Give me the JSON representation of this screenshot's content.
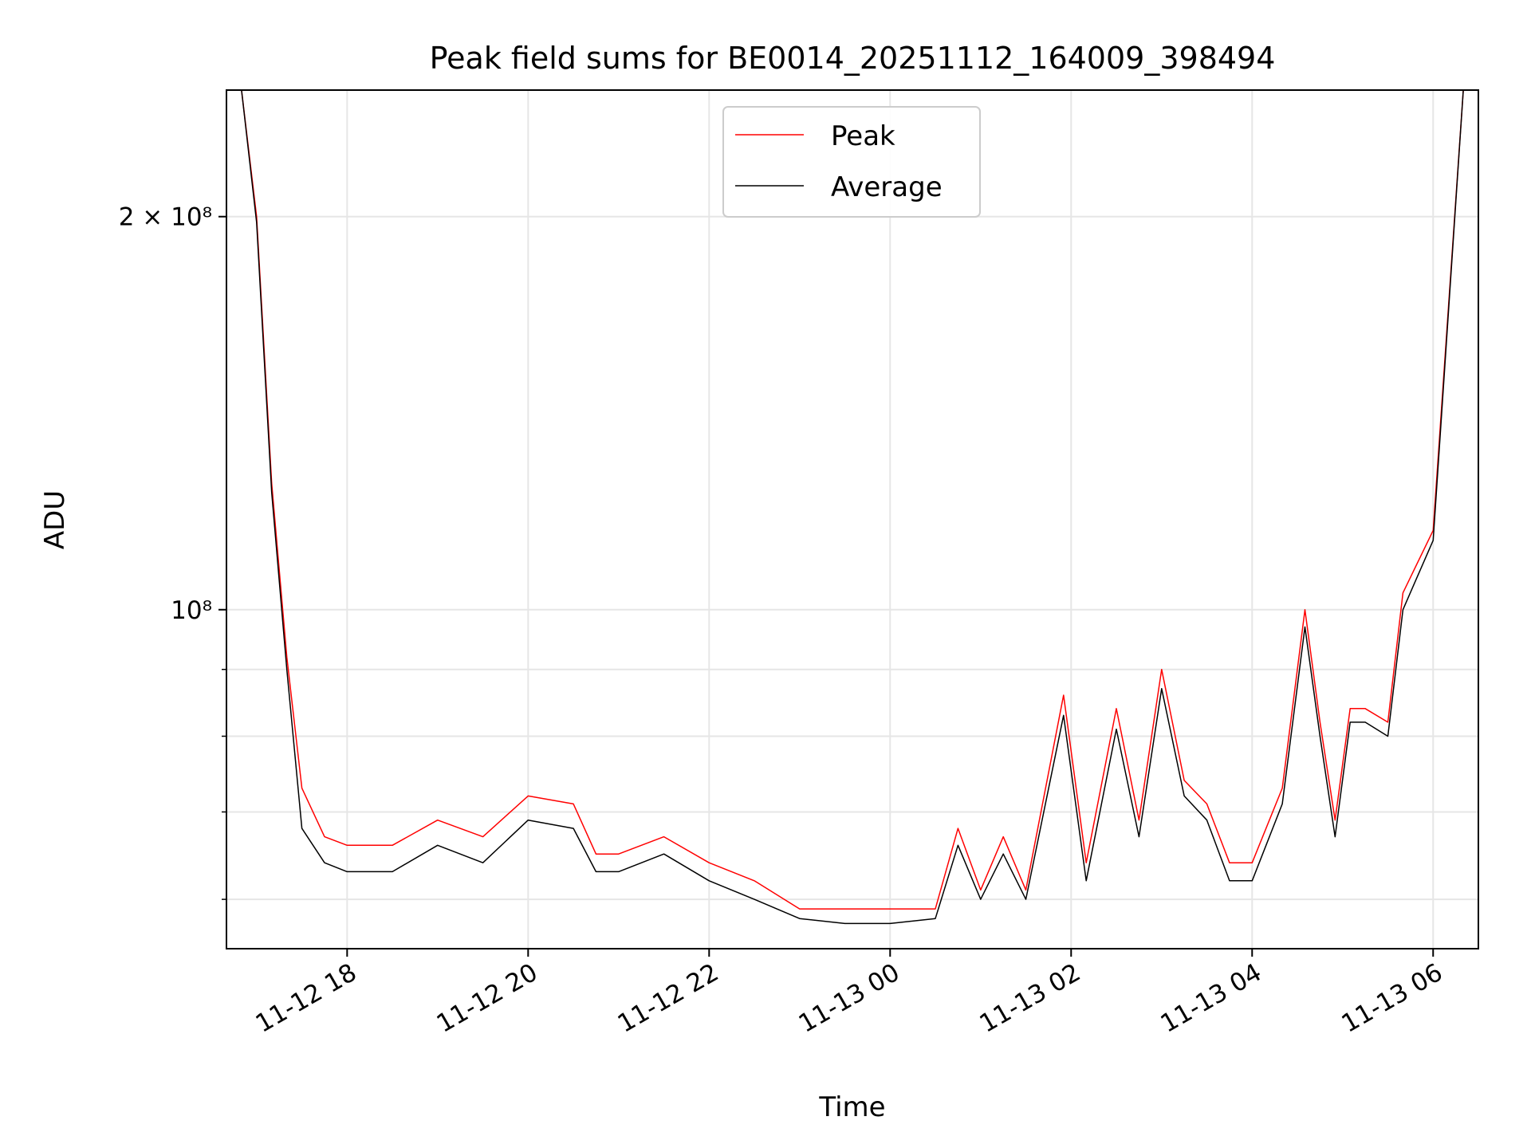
{
  "chart_data": {
    "type": "line",
    "title": "Peak field sums for BE0014_20251112_164009_398494",
    "xlabel": "Time",
    "ylabel": "ADU",
    "y_scale": "log",
    "ylim": [
      55000000,
      250000000
    ],
    "xlim": [
      "2025-11-12T16:40:00",
      "2025-11-13T06:30:00"
    ],
    "grid": true,
    "legend_location": "upper center",
    "x_ticks": [
      {
        "value": "2025-11-12T18:00:00",
        "label": "11-12 18"
      },
      {
        "value": "2025-11-12T20:00:00",
        "label": "11-12 20"
      },
      {
        "value": "2025-11-12T22:00:00",
        "label": "11-12 22"
      },
      {
        "value": "2025-11-13T00:00:00",
        "label": "11-13 00"
      },
      {
        "value": "2025-11-13T02:00:00",
        "label": "11-13 02"
      },
      {
        "value": "2025-11-13T04:00:00",
        "label": "11-13 04"
      },
      {
        "value": "2025-11-13T06:00:00",
        "label": "11-13 06"
      }
    ],
    "y_ticks": [
      {
        "value": 100000000,
        "label": "10⁸"
      },
      {
        "value": 200000000,
        "label": "2 × 10⁸"
      }
    ],
    "y_minor_ticks": [
      60000000,
      70000000,
      80000000,
      90000000
    ],
    "series": [
      {
        "name": "Peak",
        "color": "#ff0000",
        "width": 1.0,
        "x": [
          "2025-11-12T16:40:00",
          "2025-11-12T16:50:00",
          "2025-11-12T17:00:00",
          "2025-11-12T17:10:00",
          "2025-11-12T17:20:00",
          "2025-11-12T17:30:00",
          "2025-11-12T17:45:00",
          "2025-11-12T18:00:00",
          "2025-11-12T18:30:00",
          "2025-11-12T19:00:00",
          "2025-11-12T19:30:00",
          "2025-11-12T20:00:00",
          "2025-11-12T20:30:00",
          "2025-11-12T20:45:00",
          "2025-11-12T21:00:00",
          "2025-11-12T21:30:00",
          "2025-11-12T22:00:00",
          "2025-11-12T22:30:00",
          "2025-11-12T23:00:00",
          "2025-11-12T23:30:00",
          "2025-11-13T00:00:00",
          "2025-11-13T00:30:00",
          "2025-11-13T00:45:00",
          "2025-11-13T01:00:00",
          "2025-11-13T01:15:00",
          "2025-11-13T01:30:00",
          "2025-11-13T01:55:00",
          "2025-11-13T02:10:00",
          "2025-11-13T02:30:00",
          "2025-11-13T02:45:00",
          "2025-11-13T03:00:00",
          "2025-11-13T03:15:00",
          "2025-11-13T03:30:00",
          "2025-11-13T03:45:00",
          "2025-11-13T04:00:00",
          "2025-11-13T04:20:00",
          "2025-11-13T04:35:00",
          "2025-11-13T04:45:00",
          "2025-11-13T04:55:00",
          "2025-11-13T05:05:00",
          "2025-11-13T05:15:00",
          "2025-11-13T05:30:00",
          "2025-11-13T05:40:00",
          "2025-11-13T06:00:00",
          "2025-11-13T06:20:00"
        ],
        "values": [
          250000000,
          250000000,
          200000000,
          125000000,
          92000000,
          73000000,
          67000000,
          66000000,
          66000000,
          69000000,
          67000000,
          72000000,
          71000000,
          65000000,
          65000000,
          67000000,
          64000000,
          62000000,
          59000000,
          59000000,
          59000000,
          59000000,
          68000000,
          61000000,
          67000000,
          61000000,
          86000000,
          64000000,
          84000000,
          69000000,
          90000000,
          74000000,
          71000000,
          64000000,
          64000000,
          73000000,
          100000000,
          82000000,
          69000000,
          84000000,
          84000000,
          82000000,
          103000000,
          115000000,
          250000000
        ]
      },
      {
        "name": "Average",
        "color": "#000000",
        "width": 1.0,
        "x": [
          "2025-11-12T16:40:00",
          "2025-11-12T16:50:00",
          "2025-11-12T17:00:00",
          "2025-11-12T17:10:00",
          "2025-11-12T17:20:00",
          "2025-11-12T17:30:00",
          "2025-11-12T17:45:00",
          "2025-11-12T18:00:00",
          "2025-11-12T18:30:00",
          "2025-11-12T19:00:00",
          "2025-11-12T19:30:00",
          "2025-11-12T20:00:00",
          "2025-11-12T20:30:00",
          "2025-11-12T20:45:00",
          "2025-11-12T21:00:00",
          "2025-11-12T21:30:00",
          "2025-11-12T22:00:00",
          "2025-11-12T22:30:00",
          "2025-11-12T23:00:00",
          "2025-11-12T23:30:00",
          "2025-11-13T00:00:00",
          "2025-11-13T00:30:00",
          "2025-11-13T00:45:00",
          "2025-11-13T01:00:00",
          "2025-11-13T01:15:00",
          "2025-11-13T01:30:00",
          "2025-11-13T01:55:00",
          "2025-11-13T02:10:00",
          "2025-11-13T02:30:00",
          "2025-11-13T02:45:00",
          "2025-11-13T03:00:00",
          "2025-11-13T03:15:00",
          "2025-11-13T03:30:00",
          "2025-11-13T03:45:00",
          "2025-11-13T04:00:00",
          "2025-11-13T04:20:00",
          "2025-11-13T04:35:00",
          "2025-11-13T04:45:00",
          "2025-11-13T04:55:00",
          "2025-11-13T05:05:00",
          "2025-11-13T05:15:00",
          "2025-11-13T05:30:00",
          "2025-11-13T05:40:00",
          "2025-11-13T06:00:00",
          "2025-11-13T06:20:00"
        ],
        "values": [
          250000000,
          250000000,
          198000000,
          123000000,
          90000000,
          68000000,
          64000000,
          63000000,
          63000000,
          66000000,
          64000000,
          69000000,
          68000000,
          63000000,
          63000000,
          65000000,
          62000000,
          60000000,
          58000000,
          57500000,
          57500000,
          58000000,
          66000000,
          60000000,
          65000000,
          60000000,
          83000000,
          62000000,
          81000000,
          67000000,
          87000000,
          72000000,
          69000000,
          62000000,
          62000000,
          71000000,
          97000000,
          80000000,
          67000000,
          82000000,
          82000000,
          80000000,
          100000000,
          113000000,
          250000000
        ]
      }
    ]
  }
}
